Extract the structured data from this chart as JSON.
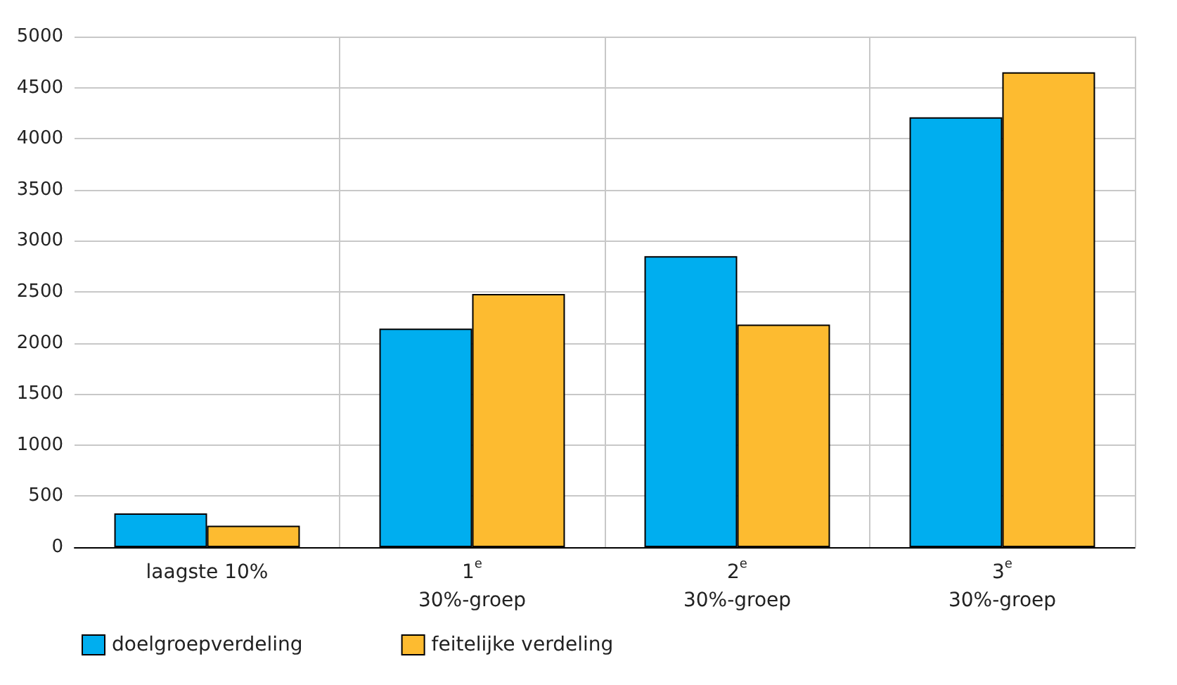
{
  "chart_data": {
    "type": "bar",
    "categories": [
      "laagste 10%",
      "1$^{e}$\n30%-groep",
      "2$^{e}$\n30%-groep",
      "3$^{e}$\n30%-groep"
    ],
    "series": [
      {
        "name": "doelgroepverdeling",
        "color": "#00aeef",
        "values": [
          330,
          2140,
          2850,
          4210
        ]
      },
      {
        "name": "feitelijke verdeling",
        "color": "#fdbb30",
        "values": [
          210,
          2480,
          2180,
          4650
        ]
      }
    ],
    "ylim": [
      0,
      5000
    ],
    "yticks": [
      0,
      500,
      1000,
      1500,
      2000,
      2500,
      3000,
      3500,
      4000,
      4500,
      5000
    ],
    "grid": true,
    "legend": "bottom left"
  }
}
